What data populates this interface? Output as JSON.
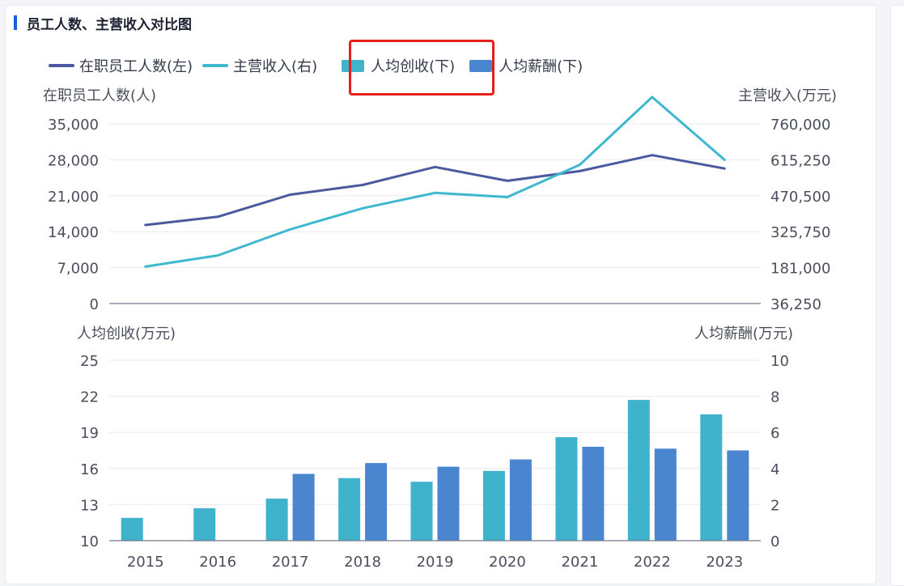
{
  "panel_title": "员工人数、主营收入对比图",
  "legend": [
    {
      "label": "在职员工人数(左)",
      "kind": "line",
      "color": "#4b5a9e"
    },
    {
      "label": "主营收入(右)",
      "kind": "line",
      "color": "#3fb8cf"
    },
    {
      "label": "人均创收(下)",
      "kind": "box",
      "color": "#3fb3cc"
    },
    {
      "label": "人均薪酬(下)",
      "kind": "box",
      "color": "#4a86cf"
    }
  ],
  "chart_data": [
    {
      "type": "line",
      "title": "员工人数、主营收入对比图",
      "x": [
        "2015",
        "2016",
        "2017",
        "2018",
        "2019",
        "2020",
        "2021",
        "2022",
        "2023"
      ],
      "y_left_label": "在职员工人数(人)",
      "y_right_label": "主营收入(万元)",
      "y_left_ticks": [
        "35,000",
        "28,000",
        "21,000",
        "14,000",
        "7,000",
        "0"
      ],
      "y_right_ticks": [
        "760,000",
        "615,250",
        "470,500",
        "325,750",
        "181,000",
        "36,250"
      ],
      "ylim_left": [
        0,
        35000
      ],
      "ylim_right": [
        36250,
        760000
      ],
      "series": [
        {
          "name": "在职员工人数",
          "axis": "left",
          "color": "#4b5a9e",
          "values": [
            15300,
            16900,
            21200,
            23100,
            26600,
            23900,
            25800,
            28900,
            26300
          ]
        },
        {
          "name": "主营收入",
          "axis": "right",
          "color": "#3fb8cf",
          "values": [
            185000,
            230000,
            335000,
            420000,
            482000,
            465000,
            595000,
            868000,
            615000
          ]
        }
      ]
    },
    {
      "type": "bar",
      "x": [
        "2015",
        "2016",
        "2017",
        "2018",
        "2019",
        "2020",
        "2021",
        "2022",
        "2023"
      ],
      "y_left_label": "人均创收(万元)",
      "y_right_label": "人均薪酬(万元)",
      "y_left_ticks": [
        "25",
        "22",
        "19",
        "16",
        "13",
        "10"
      ],
      "y_right_ticks": [
        "10",
        "8",
        "6",
        "4",
        "2",
        "0"
      ],
      "ylim_left": [
        10,
        25
      ],
      "ylim_right": [
        0,
        10
      ],
      "series": [
        {
          "name": "人均创收",
          "axis": "left",
          "color": "#3fb3cc",
          "values": [
            11.9,
            12.7,
            13.5,
            15.2,
            14.9,
            15.8,
            18.6,
            21.7,
            20.5
          ]
        },
        {
          "name": "人均薪酬",
          "axis": "right",
          "color": "#4a86cf",
          "values": [
            null,
            null,
            3.7,
            4.3,
            4.1,
            4.5,
            5.2,
            5.1,
            5.0
          ]
        }
      ]
    }
  ]
}
